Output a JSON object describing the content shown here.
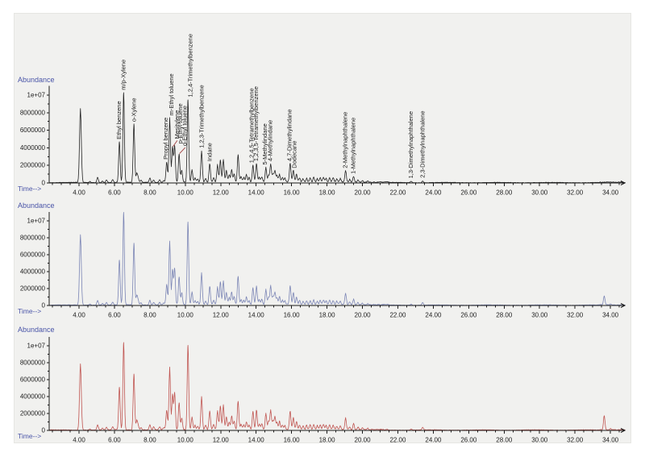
{
  "background": {
    "page": "#ffffff",
    "canvas": "#f1f1ef"
  },
  "axes": {
    "x_label": "Time-->",
    "y_label": "Abundance",
    "x_tick_labels": [
      "4.00",
      "6.00",
      "8.00",
      "10.00",
      "12.00",
      "14.00",
      "16.00",
      "18.00",
      "20.00",
      "22.00",
      "24.00",
      "26.00",
      "28.00",
      "30.00",
      "32.00",
      "34.00"
    ],
    "x_tick_values": [
      4,
      6,
      8,
      10,
      12,
      14,
      16,
      18,
      20,
      22,
      24,
      26,
      28,
      30,
      32,
      34
    ],
    "x_minor_tick_step": 0.5,
    "x_range": [
      2.34,
      34.85
    ],
    "y_tick_labels": [
      "0",
      "2000000",
      "4000000",
      "6000000",
      "8000000",
      "1e+07"
    ],
    "y_tick_values_e6": [
      0,
      2,
      4,
      6,
      8,
      10
    ],
    "axis_color": "#1a1a1a",
    "tick_label_color": "#222222",
    "axis_title_color": "#4a55a8"
  },
  "chart_data": {
    "type": "line",
    "description": "Three stacked GC chromatograms (abundance vs retention time, minutes); top trace has compound peak annotations",
    "height_unit_counts": 1000000,
    "leader_line_color": "#a04040",
    "panels": [
      {
        "name": "chromatogram-top-labeled",
        "color": "#222222",
        "peaks": [
          [
            4.08,
            8.4
          ],
          [
            4.62,
            0.12
          ],
          [
            5.05,
            0.6
          ],
          [
            5.32,
            0.18
          ],
          [
            5.55,
            0.3
          ],
          [
            5.9,
            0.32
          ],
          [
            6.28,
            4.6
          ],
          [
            6.52,
            10.2
          ],
          [
            7.1,
            6.6
          ],
          [
            7.26,
            1.0
          ],
          [
            7.34,
            0.45
          ],
          [
            7.5,
            0.25
          ],
          [
            8.0,
            0.5
          ],
          [
            8.22,
            0.3
          ],
          [
            8.55,
            0.28
          ],
          [
            8.78,
            0.2
          ],
          [
            8.95,
            2.3
          ],
          [
            9.12,
            7.3
          ],
          [
            9.28,
            4.0
          ],
          [
            9.4,
            4.1
          ],
          [
            9.65,
            3.2
          ],
          [
            9.8,
            1.35
          ],
          [
            10.15,
            9.4
          ],
          [
            10.38,
            1.4
          ],
          [
            10.55,
            0.5
          ],
          [
            10.7,
            0.35
          ],
          [
            10.92,
            3.6
          ],
          [
            11.15,
            0.45
          ],
          [
            11.38,
            2.1
          ],
          [
            11.6,
            0.55
          ],
          [
            11.82,
            2.0
          ],
          [
            11.98,
            2.5
          ],
          [
            12.15,
            2.6
          ],
          [
            12.32,
            1.3
          ],
          [
            12.48,
            0.8
          ],
          [
            12.62,
            1.4
          ],
          [
            12.76,
            0.9
          ],
          [
            12.98,
            3.1
          ],
          [
            13.15,
            0.6
          ],
          [
            13.3,
            0.5
          ],
          [
            13.45,
            0.85
          ],
          [
            13.6,
            0.5
          ],
          [
            13.82,
            1.9
          ],
          [
            14.02,
            2.1
          ],
          [
            14.18,
            0.55
          ],
          [
            14.32,
            0.6
          ],
          [
            14.55,
            1.7
          ],
          [
            14.7,
            0.8
          ],
          [
            14.82,
            2.1
          ],
          [
            14.95,
            0.9
          ],
          [
            15.06,
            1.3
          ],
          [
            15.18,
            0.7
          ],
          [
            15.32,
            0.85
          ],
          [
            15.48,
            0.5
          ],
          [
            15.62,
            0.45
          ],
          [
            15.92,
            2.1
          ],
          [
            16.1,
            1.3
          ],
          [
            16.28,
            0.85
          ],
          [
            16.45,
            0.5
          ],
          [
            16.65,
            0.4
          ],
          [
            16.85,
            0.45
          ],
          [
            17.05,
            0.5
          ],
          [
            17.25,
            0.55
          ],
          [
            17.45,
            0.4
          ],
          [
            17.62,
            0.5
          ],
          [
            17.8,
            0.55
          ],
          [
            17.95,
            0.4
          ],
          [
            18.15,
            0.5
          ],
          [
            18.35,
            0.45
          ],
          [
            18.55,
            0.35
          ],
          [
            18.75,
            0.4
          ],
          [
            19.05,
            1.3
          ],
          [
            19.28,
            0.3
          ],
          [
            19.5,
            0.65
          ],
          [
            19.75,
            0.25
          ],
          [
            20.0,
            0.2
          ],
          [
            20.3,
            0.15
          ],
          [
            22.75,
            0.15
          ],
          [
            23.4,
            0.2
          ]
        ],
        "peak_labels": [
          {
            "text": "Ethyl benzene",
            "t": 6.28,
            "label_t": 6.24
          },
          {
            "text": "m/p-Xylene",
            "t": 6.52,
            "label_t": 6.49
          },
          {
            "text": "o-Xylene",
            "t": 7.1,
            "label_t": 7.07
          },
          {
            "text": "Propyl benzene",
            "t": 8.95,
            "label_t": 8.88
          },
          {
            "text": "m-Ethyl toluene",
            "t": 9.12,
            "label_t": 9.2
          },
          {
            "text": "Mesitylene",
            "t": 9.28,
            "label_t": 9.5,
            "leader": true
          },
          {
            "text": "p-Ethyl toluene",
            "t": 9.4,
            "label_t": 9.7
          },
          {
            "text": "o-Ethyl toluene",
            "t": 9.65,
            "label_t": 9.95,
            "leader": true
          },
          {
            "text": "1,2,4-Trimethylbenzene",
            "t": 10.15,
            "label_t": 10.26
          },
          {
            "text": "1,2,3-Trimethylbenzene",
            "t": 10.92,
            "label_t": 10.89
          },
          {
            "text": "Indane",
            "t": 11.38,
            "label_t": 11.35
          },
          {
            "text": "1,2,4,5-Tetramethylbenzene",
            "t": 13.82,
            "label_t": 13.72
          },
          {
            "text": "1,2,3,5-Tetramethylbenzene",
            "t": 14.02,
            "label_t": 13.97
          },
          {
            "text": "5-Methylindane",
            "t": 14.55,
            "label_t": 14.48
          },
          {
            "text": "4-Methylindane",
            "t": 14.82,
            "label_t": 14.76
          },
          {
            "text": "4,7-Dimethylindane",
            "t": 15.92,
            "label_t": 15.86
          },
          {
            "text": "Dodecane",
            "t": 16.1,
            "label_t": 16.12
          },
          {
            "text": "2-Methylnaphthalene",
            "t": 19.05,
            "label_t": 19.0
          },
          {
            "text": "1-Methylnaphthalene",
            "t": 19.5,
            "label_t": 19.46
          },
          {
            "text": "1,3-Dimethylnaphthalene",
            "t": 22.75,
            "label_t": 22.7
          },
          {
            "text": "2,3-Dimethylnaphthalene",
            "t": 23.4,
            "label_t": 23.36
          }
        ]
      },
      {
        "name": "chromatogram-middle-blue",
        "color": "#7b85b5",
        "peaks": [
          [
            4.08,
            8.3
          ],
          [
            4.62,
            0.12
          ],
          [
            5.05,
            0.55
          ],
          [
            5.32,
            0.18
          ],
          [
            5.55,
            0.3
          ],
          [
            5.9,
            0.32
          ],
          [
            6.28,
            5.3
          ],
          [
            6.52,
            10.9
          ],
          [
            7.1,
            7.3
          ],
          [
            7.26,
            1.1
          ],
          [
            7.34,
            0.5
          ],
          [
            7.5,
            0.25
          ],
          [
            8.0,
            0.55
          ],
          [
            8.22,
            0.32
          ],
          [
            8.55,
            0.3
          ],
          [
            8.78,
            0.2
          ],
          [
            8.95,
            2.4
          ],
          [
            9.12,
            7.5
          ],
          [
            9.28,
            4.1
          ],
          [
            9.4,
            4.25
          ],
          [
            9.65,
            3.3
          ],
          [
            9.8,
            1.4
          ],
          [
            10.15,
            9.8
          ],
          [
            10.38,
            1.5
          ],
          [
            10.55,
            0.5
          ],
          [
            10.7,
            0.38
          ],
          [
            10.92,
            3.8
          ],
          [
            11.15,
            0.45
          ],
          [
            11.38,
            2.2
          ],
          [
            11.6,
            0.55
          ],
          [
            11.82,
            2.1
          ],
          [
            11.98,
            2.7
          ],
          [
            12.15,
            2.8
          ],
          [
            12.32,
            1.4
          ],
          [
            12.48,
            0.85
          ],
          [
            12.62,
            1.5
          ],
          [
            12.76,
            0.95
          ],
          [
            12.98,
            3.4
          ],
          [
            13.15,
            0.6
          ],
          [
            13.3,
            0.5
          ],
          [
            13.45,
            0.9
          ],
          [
            13.6,
            0.5
          ],
          [
            13.82,
            2.0
          ],
          [
            14.02,
            2.2
          ],
          [
            14.18,
            0.6
          ],
          [
            14.32,
            0.6
          ],
          [
            14.55,
            1.8
          ],
          [
            14.7,
            0.85
          ],
          [
            14.82,
            2.2
          ],
          [
            14.95,
            0.95
          ],
          [
            15.06,
            1.4
          ],
          [
            15.18,
            0.75
          ],
          [
            15.32,
            0.9
          ],
          [
            15.48,
            0.5
          ],
          [
            15.62,
            0.45
          ],
          [
            15.92,
            2.2
          ],
          [
            16.1,
            1.4
          ],
          [
            16.28,
            0.9
          ],
          [
            16.45,
            0.5
          ],
          [
            16.65,
            0.42
          ],
          [
            16.85,
            0.45
          ],
          [
            17.05,
            0.5
          ],
          [
            17.25,
            0.55
          ],
          [
            17.45,
            0.42
          ],
          [
            17.62,
            0.5
          ],
          [
            17.8,
            0.55
          ],
          [
            17.95,
            0.42
          ],
          [
            18.15,
            0.5
          ],
          [
            18.35,
            0.45
          ],
          [
            18.55,
            0.38
          ],
          [
            18.75,
            0.4
          ],
          [
            19.05,
            1.35
          ],
          [
            19.28,
            0.3
          ],
          [
            19.5,
            0.7
          ],
          [
            19.75,
            0.28
          ],
          [
            20.0,
            0.2
          ],
          [
            20.3,
            0.15
          ],
          [
            22.75,
            0.12
          ],
          [
            23.4,
            0.3
          ],
          [
            33.65,
            1.05
          ],
          [
            34.0,
            0.12
          ]
        ],
        "peak_labels": []
      },
      {
        "name": "chromatogram-bottom-red",
        "color": "#c05551",
        "peaks": [
          [
            4.08,
            7.8
          ],
          [
            4.62,
            0.12
          ],
          [
            5.05,
            0.6
          ],
          [
            5.32,
            0.2
          ],
          [
            5.55,
            0.3
          ],
          [
            5.9,
            0.35
          ],
          [
            6.28,
            5.0
          ],
          [
            6.52,
            10.3
          ],
          [
            7.1,
            6.6
          ],
          [
            7.26,
            1.1
          ],
          [
            7.34,
            0.5
          ],
          [
            7.5,
            0.28
          ],
          [
            8.0,
            0.6
          ],
          [
            8.22,
            0.35
          ],
          [
            8.55,
            0.32
          ],
          [
            8.78,
            0.22
          ],
          [
            8.95,
            2.3
          ],
          [
            9.12,
            7.4
          ],
          [
            9.28,
            4.1
          ],
          [
            9.4,
            4.3
          ],
          [
            9.65,
            3.2
          ],
          [
            9.8,
            1.4
          ],
          [
            10.15,
            10.0
          ],
          [
            10.38,
            1.5
          ],
          [
            10.55,
            0.55
          ],
          [
            10.7,
            0.4
          ],
          [
            10.92,
            3.9
          ],
          [
            11.15,
            0.5
          ],
          [
            11.38,
            2.2
          ],
          [
            11.6,
            0.6
          ],
          [
            11.82,
            2.2
          ],
          [
            11.98,
            2.8
          ],
          [
            12.15,
            2.9
          ],
          [
            12.32,
            1.5
          ],
          [
            12.48,
            0.9
          ],
          [
            12.62,
            1.6
          ],
          [
            12.76,
            1.0
          ],
          [
            12.98,
            3.4
          ],
          [
            13.15,
            0.65
          ],
          [
            13.3,
            0.55
          ],
          [
            13.45,
            0.9
          ],
          [
            13.6,
            0.55
          ],
          [
            13.82,
            2.1
          ],
          [
            14.02,
            2.3
          ],
          [
            14.18,
            0.6
          ],
          [
            14.32,
            0.65
          ],
          [
            14.55,
            1.9
          ],
          [
            14.7,
            0.9
          ],
          [
            14.82,
            2.3
          ],
          [
            14.95,
            1.0
          ],
          [
            15.06,
            1.5
          ],
          [
            15.18,
            0.8
          ],
          [
            15.32,
            0.95
          ],
          [
            15.48,
            0.55
          ],
          [
            15.62,
            0.5
          ],
          [
            15.92,
            2.2
          ],
          [
            16.1,
            1.4
          ],
          [
            16.28,
            0.95
          ],
          [
            16.45,
            0.55
          ],
          [
            16.65,
            0.45
          ],
          [
            16.85,
            0.5
          ],
          [
            17.05,
            0.55
          ],
          [
            17.25,
            0.6
          ],
          [
            17.45,
            0.45
          ],
          [
            17.62,
            0.55
          ],
          [
            17.8,
            0.6
          ],
          [
            17.95,
            0.45
          ],
          [
            18.15,
            0.55
          ],
          [
            18.35,
            0.5
          ],
          [
            18.55,
            0.4
          ],
          [
            18.75,
            0.45
          ],
          [
            19.05,
            1.4
          ],
          [
            19.28,
            0.32
          ],
          [
            19.5,
            0.75
          ],
          [
            19.75,
            0.3
          ],
          [
            20.0,
            0.22
          ],
          [
            20.3,
            0.16
          ],
          [
            22.75,
            0.12
          ],
          [
            23.4,
            0.3
          ],
          [
            33.65,
            1.7
          ],
          [
            34.0,
            0.15
          ]
        ],
        "peak_labels": []
      }
    ]
  }
}
